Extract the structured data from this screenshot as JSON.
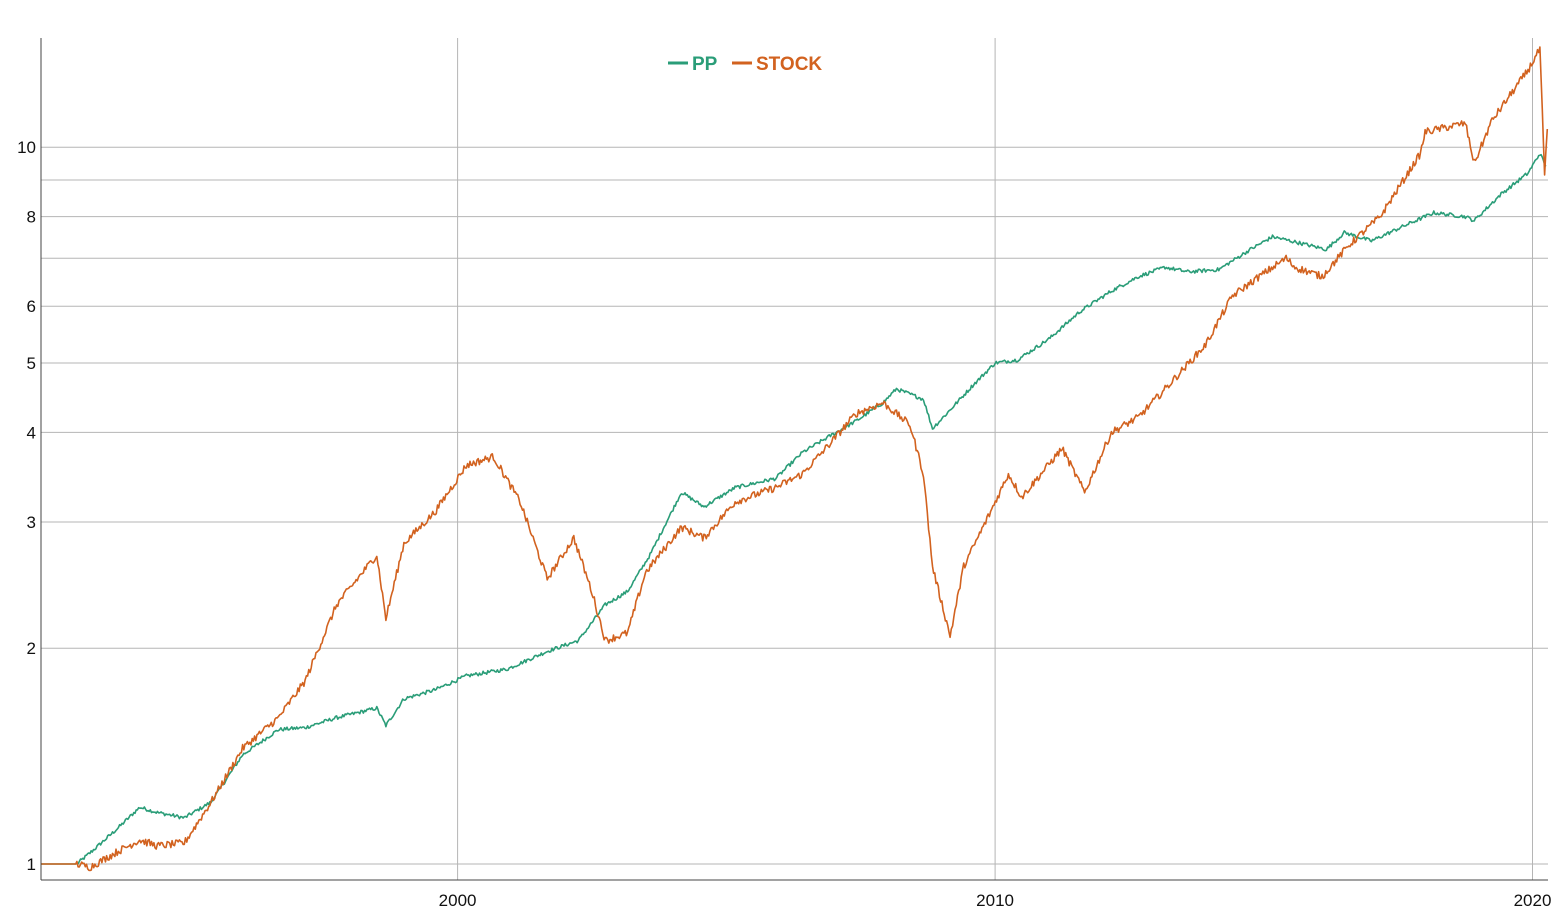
{
  "chart_data": {
    "type": "line",
    "title": "",
    "xlabel": "",
    "ylabel": "",
    "x_scale": "time",
    "y_scale": "log",
    "xlim": [
      "1992-04-01",
      "2020-04-15"
    ],
    "ylim": [
      0.95,
      14.2
    ],
    "grid": true,
    "legend_position": "top-center",
    "x_ticks": [
      {
        "value": "2000-01-01",
        "label": "2000"
      },
      {
        "value": "2010-01-01",
        "label": "2010"
      },
      {
        "value": "2020-01-01",
        "label": "2020"
      }
    ],
    "y_ticks": [
      {
        "value": 1,
        "label": "1"
      },
      {
        "value": 2,
        "label": "2"
      },
      {
        "value": 3,
        "label": "3"
      },
      {
        "value": 4,
        "label": "4"
      },
      {
        "value": 5,
        "label": "5"
      },
      {
        "value": 6,
        "label": "6"
      },
      {
        "value": 8,
        "label": "8"
      },
      {
        "value": 10,
        "label": "10"
      }
    ],
    "y_gridlines": [
      1,
      2,
      3,
      4,
      5,
      6,
      7,
      8,
      9,
      10
    ],
    "series": [
      {
        "name": "PP",
        "color": "#2a9d78",
        "points": [
          [
            "1992-04-01",
            1.0
          ],
          [
            "1992-12-01",
            1.0
          ],
          [
            "1993-04-01",
            1.05
          ],
          [
            "1993-09-01",
            1.12
          ],
          [
            "1994-02-01",
            1.2
          ],
          [
            "1994-06-01",
            1.18
          ],
          [
            "1994-12-01",
            1.16
          ],
          [
            "1995-06-01",
            1.22
          ],
          [
            "1996-01-01",
            1.42
          ],
          [
            "1996-09-01",
            1.54
          ],
          [
            "1997-03-01",
            1.55
          ],
          [
            "1997-10-01",
            1.6
          ],
          [
            "1998-07-01",
            1.65
          ],
          [
            "1998-09-01",
            1.56
          ],
          [
            "1999-01-01",
            1.7
          ],
          [
            "1999-08-01",
            1.75
          ],
          [
            "2000-03-01",
            1.83
          ],
          [
            "2000-12-01",
            1.87
          ],
          [
            "2001-09-01",
            1.98
          ],
          [
            "2002-04-01",
            2.05
          ],
          [
            "2002-10-01",
            2.3
          ],
          [
            "2003-03-01",
            2.4
          ],
          [
            "2003-08-01",
            2.7
          ],
          [
            "2004-03-01",
            3.3
          ],
          [
            "2004-08-01",
            3.15
          ],
          [
            "2005-03-01",
            3.35
          ],
          [
            "2005-12-01",
            3.45
          ],
          [
            "2006-06-01",
            3.75
          ],
          [
            "2006-12-01",
            3.95
          ],
          [
            "2007-06-01",
            4.15
          ],
          [
            "2007-12-01",
            4.4
          ],
          [
            "2008-03-01",
            4.6
          ],
          [
            "2008-09-01",
            4.45
          ],
          [
            "2008-11-01",
            4.05
          ],
          [
            "2009-03-01",
            4.3
          ],
          [
            "2009-08-01",
            4.65
          ],
          [
            "2010-01-01",
            5.0
          ],
          [
            "2010-06-01",
            5.05
          ],
          [
            "2011-01-01",
            5.4
          ],
          [
            "2011-08-01",
            5.9
          ],
          [
            "2012-03-01",
            6.3
          ],
          [
            "2012-09-01",
            6.6
          ],
          [
            "2013-03-01",
            6.8
          ],
          [
            "2013-08-01",
            6.7
          ],
          [
            "2014-03-01",
            6.75
          ],
          [
            "2014-10-01",
            7.2
          ],
          [
            "2015-03-01",
            7.5
          ],
          [
            "2015-09-01",
            7.35
          ],
          [
            "2016-03-01",
            7.2
          ],
          [
            "2016-07-01",
            7.6
          ],
          [
            "2017-01-01",
            7.4
          ],
          [
            "2017-09-01",
            7.8
          ],
          [
            "2018-03-01",
            8.1
          ],
          [
            "2018-10-01",
            8.0
          ],
          [
            "2018-12-01",
            7.9
          ],
          [
            "2019-06-01",
            8.6
          ],
          [
            "2019-12-01",
            9.2
          ],
          [
            "2020-02-20",
            9.8
          ],
          [
            "2020-04-01",
            9.4
          ]
        ]
      },
      {
        "name": "STOCK",
        "color": "#d2621f",
        "points": [
          [
            "1992-04-01",
            1.0
          ],
          [
            "1992-12-01",
            1.0
          ],
          [
            "1993-03-01",
            0.99
          ],
          [
            "1993-09-01",
            1.04
          ],
          [
            "1994-02-01",
            1.08
          ],
          [
            "1994-06-01",
            1.06
          ],
          [
            "1994-12-01",
            1.07
          ],
          [
            "1995-06-01",
            1.22
          ],
          [
            "1996-01-01",
            1.45
          ],
          [
            "1996-09-01",
            1.6
          ],
          [
            "1997-03-01",
            1.8
          ],
          [
            "1997-10-01",
            2.3
          ],
          [
            "1998-07-01",
            2.7
          ],
          [
            "1998-09-01",
            2.2
          ],
          [
            "1999-01-01",
            2.8
          ],
          [
            "1999-08-01",
            3.1
          ],
          [
            "2000-03-01",
            3.6
          ],
          [
            "2000-09-01",
            3.7
          ],
          [
            "2001-03-01",
            3.2
          ],
          [
            "2001-09-01",
            2.5
          ],
          [
            "2002-03-01",
            2.85
          ],
          [
            "2002-07-01",
            2.4
          ],
          [
            "2002-10-01",
            2.05
          ],
          [
            "2003-03-01",
            2.1
          ],
          [
            "2003-07-01",
            2.55
          ],
          [
            "2004-03-01",
            2.95
          ],
          [
            "2004-08-01",
            2.85
          ],
          [
            "2005-03-01",
            3.2
          ],
          [
            "2005-12-01",
            3.35
          ],
          [
            "2006-06-01",
            3.5
          ],
          [
            "2006-12-01",
            3.85
          ],
          [
            "2007-06-01",
            4.25
          ],
          [
            "2007-12-01",
            4.4
          ],
          [
            "2008-06-01",
            4.1
          ],
          [
            "2008-09-01",
            3.5
          ],
          [
            "2008-11-01",
            2.6
          ],
          [
            "2009-03-01",
            2.08
          ],
          [
            "2009-06-01",
            2.6
          ],
          [
            "2009-12-01",
            3.1
          ],
          [
            "2010-04-01",
            3.5
          ],
          [
            "2010-07-01",
            3.25
          ],
          [
            "2011-04-01",
            3.8
          ],
          [
            "2011-09-01",
            3.3
          ],
          [
            "2012-03-01",
            4.0
          ],
          [
            "2012-09-01",
            4.2
          ],
          [
            "2013-03-01",
            4.6
          ],
          [
            "2013-12-01",
            5.3
          ],
          [
            "2014-06-01",
            6.2
          ],
          [
            "2014-12-01",
            6.6
          ],
          [
            "2015-06-01",
            7.0
          ],
          [
            "2015-08-01",
            6.8
          ],
          [
            "2016-02-01",
            6.6
          ],
          [
            "2016-08-01",
            7.3
          ],
          [
            "2017-03-01",
            8.0
          ],
          [
            "2017-12-01",
            9.8
          ],
          [
            "2018-01-01",
            10.5
          ],
          [
            "2018-10-01",
            10.8
          ],
          [
            "2018-12-01",
            9.5
          ],
          [
            "2019-04-01",
            10.9
          ],
          [
            "2019-12-01",
            12.8
          ],
          [
            "2020-02-20",
            13.7
          ],
          [
            "2020-03-23",
            9.1
          ],
          [
            "2020-04-10",
            10.6
          ]
        ]
      }
    ]
  }
}
